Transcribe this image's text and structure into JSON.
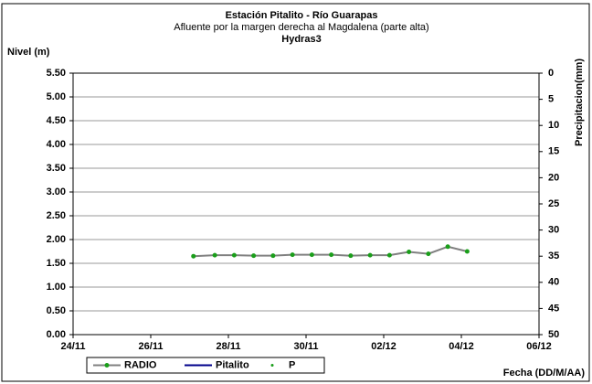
{
  "chart_data": {
    "type": "line",
    "title": "Estación Pitalito  - Río Guarapas",
    "subtitle": "Afluente por la margen derecha al Magdalena (parte alta)",
    "station": "Hydras3",
    "y_label": "Nivel (m)",
    "y2_label": "Precipitacion(mm)",
    "x_label": "Fecha (DD/M/AA)",
    "x": [
      3.1,
      3.65,
      4.15,
      4.65,
      5.15,
      5.65,
      6.15,
      6.65,
      7.15,
      7.65,
      8.15,
      8.65,
      9.15,
      9.65,
      10.15
    ],
    "series": [
      {
        "name": "RADIO",
        "color": "#808080",
        "marker_color": "#1a9e1a",
        "values": [
          1.65,
          1.67,
          1.67,
          1.66,
          1.66,
          1.68,
          1.68,
          1.68,
          1.66,
          1.67,
          1.67,
          1.74,
          1.7,
          1.85,
          1.75
        ]
      },
      {
        "name": "Pitalito",
        "color": "#00008b",
        "values": [
          null,
          null,
          null,
          null,
          null,
          null,
          null,
          null,
          null,
          null,
          null,
          null,
          null,
          null,
          null
        ]
      },
      {
        "name": "P",
        "color": "#1a9e1a",
        "axis": "y2",
        "values": [
          null,
          null,
          null,
          null,
          null,
          null,
          null,
          null,
          null,
          null,
          null,
          null,
          null,
          null,
          null
        ]
      }
    ],
    "xlim": [
      0,
      12
    ],
    "xticks": [
      {
        "value": 0,
        "label": "24/11"
      },
      {
        "value": 2,
        "label": "26/11"
      },
      {
        "value": 4,
        "label": "28/11"
      },
      {
        "value": 6,
        "label": "30/11"
      },
      {
        "value": 8,
        "label": "02/12"
      },
      {
        "value": 10,
        "label": "04/12"
      },
      {
        "value": 12,
        "label": "06/12"
      }
    ],
    "ylim": [
      0,
      5.5
    ],
    "yticks": [
      {
        "value": 0,
        "label": "0.00"
      },
      {
        "value": 0.5,
        "label": "0.50"
      },
      {
        "value": 1,
        "label": "1.00"
      },
      {
        "value": 1.5,
        "label": "1.50"
      },
      {
        "value": 2,
        "label": "2.00"
      },
      {
        "value": 2.5,
        "label": "2.50"
      },
      {
        "value": 3,
        "label": "3.00"
      },
      {
        "value": 3.5,
        "label": "3.50"
      },
      {
        "value": 4,
        "label": "4.00"
      },
      {
        "value": 4.5,
        "label": "4.50"
      },
      {
        "value": 5,
        "label": "5.00"
      },
      {
        "value": 5.5,
        "label": "5.50"
      }
    ],
    "y2lim": [
      0,
      50
    ],
    "y2_reversed": true,
    "y2ticks": [
      0,
      5,
      10,
      15,
      20,
      25,
      30,
      35,
      40,
      45,
      50
    ],
    "grid": true
  }
}
